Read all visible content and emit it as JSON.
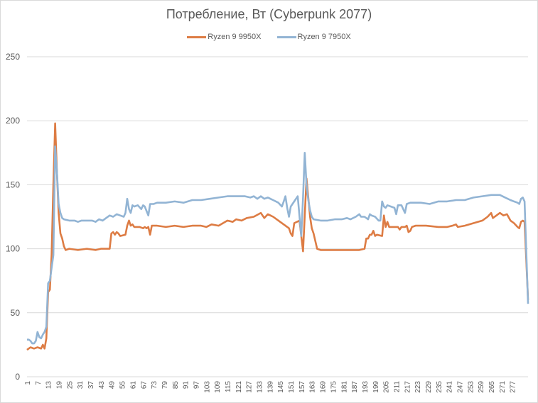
{
  "chart_data": {
    "type": "line",
    "title": "Потребление, Вт (Cyberpunk 2077)",
    "xlabel": "",
    "ylabel": "",
    "ylim": [
      0,
      250
    ],
    "yticks": [
      0,
      50,
      100,
      150,
      200,
      250
    ],
    "grid": "horizontal",
    "legend_position": "top",
    "x_range": [
      1,
      279
    ],
    "x_tick_labels": [
      "1",
      "7",
      "13",
      "19",
      "25",
      "31",
      "37",
      "43",
      "49",
      "55",
      "61",
      "67",
      "73",
      "79",
      "85",
      "91",
      "97",
      "103",
      "109",
      "115",
      "121",
      "127",
      "133",
      "139",
      "145",
      "151",
      "157",
      "163",
      "169",
      "175",
      "181",
      "187",
      "193",
      "199",
      "205",
      "211",
      "217",
      "223",
      "229",
      "235",
      "241",
      "247",
      "253",
      "259",
      "265",
      "271",
      "277"
    ],
    "series": [
      {
        "name": "Ryzen 9 9950X",
        "color": "#dd7c44",
        "keypoints": [
          [
            1,
            21
          ],
          [
            3,
            23
          ],
          [
            5,
            22
          ],
          [
            7,
            23
          ],
          [
            9,
            22
          ],
          [
            10,
            25
          ],
          [
            11,
            22
          ],
          [
            12,
            30
          ],
          [
            13,
            66
          ],
          [
            14,
            68
          ],
          [
            15,
            95
          ],
          [
            16,
            150
          ],
          [
            17,
            198
          ],
          [
            18,
            160
          ],
          [
            19,
            128
          ],
          [
            20,
            112
          ],
          [
            21,
            108
          ],
          [
            22,
            102
          ],
          [
            23,
            99
          ],
          [
            25,
            100
          ],
          [
            30,
            99
          ],
          [
            35,
            100
          ],
          [
            40,
            99
          ],
          [
            43,
            100
          ],
          [
            48,
            100
          ],
          [
            49,
            112
          ],
          [
            50,
            113
          ],
          [
            51,
            111
          ],
          [
            52,
            113
          ],
          [
            53,
            112
          ],
          [
            54,
            110
          ],
          [
            57,
            111
          ],
          [
            58,
            118
          ],
          [
            59,
            122
          ],
          [
            60,
            118
          ],
          [
            61,
            119
          ],
          [
            62,
            117
          ],
          [
            65,
            117
          ],
          [
            67,
            116
          ],
          [
            68,
            117
          ],
          [
            69,
            116
          ],
          [
            70,
            117
          ],
          [
            71,
            111
          ],
          [
            72,
            118
          ],
          [
            75,
            118
          ],
          [
            80,
            117
          ],
          [
            85,
            118
          ],
          [
            90,
            117
          ],
          [
            95,
            118
          ],
          [
            100,
            118
          ],
          [
            103,
            117
          ],
          [
            106,
            119
          ],
          [
            110,
            118
          ],
          [
            115,
            122
          ],
          [
            118,
            121
          ],
          [
            120,
            123
          ],
          [
            123,
            122
          ],
          [
            126,
            124
          ],
          [
            130,
            125
          ],
          [
            134,
            128
          ],
          [
            136,
            124
          ],
          [
            138,
            127
          ],
          [
            141,
            125
          ],
          [
            145,
            121
          ],
          [
            148,
            118
          ],
          [
            150,
            116
          ],
          [
            151,
            112
          ],
          [
            152,
            110
          ],
          [
            153,
            120
          ],
          [
            156,
            122
          ],
          [
            158,
            98
          ],
          [
            160,
            155
          ],
          [
            162,
            125
          ],
          [
            163,
            116
          ],
          [
            164,
            112
          ],
          [
            166,
            100
          ],
          [
            168,
            99
          ],
          [
            175,
            99
          ],
          [
            180,
            99
          ],
          [
            185,
            99
          ],
          [
            190,
            99
          ],
          [
            193,
            100
          ],
          [
            194,
            108
          ],
          [
            195,
            108
          ],
          [
            196,
            111
          ],
          [
            197,
            111
          ],
          [
            198,
            114
          ],
          [
            199,
            110
          ],
          [
            200,
            111
          ],
          [
            203,
            110
          ],
          [
            204,
            126
          ],
          [
            205,
            117
          ],
          [
            206,
            121
          ],
          [
            207,
            117
          ],
          [
            210,
            117
          ],
          [
            212,
            117
          ],
          [
            213,
            115
          ],
          [
            214,
            117
          ],
          [
            216,
            117
          ],
          [
            217,
            118
          ],
          [
            218,
            113
          ],
          [
            219,
            114
          ],
          [
            220,
            117
          ],
          [
            222,
            118
          ],
          [
            228,
            118
          ],
          [
            235,
            117
          ],
          [
            240,
            117
          ],
          [
            243,
            118
          ],
          [
            245,
            119
          ],
          [
            246,
            117
          ],
          [
            250,
            118
          ],
          [
            255,
            120
          ],
          [
            260,
            122
          ],
          [
            263,
            125
          ],
          [
            265,
            128
          ],
          [
            266,
            124
          ],
          [
            268,
            126
          ],
          [
            270,
            128
          ],
          [
            272,
            126
          ],
          [
            274,
            127
          ],
          [
            276,
            122
          ],
          [
            278,
            120
          ],
          [
            280,
            117
          ],
          [
            281,
            116
          ],
          [
            282,
            121
          ],
          [
            283,
            122
          ],
          [
            284,
            121
          ],
          [
            286,
            60
          ]
        ]
      },
      {
        "name": "Ryzen 9 7950X",
        "color": "#92b4d4",
        "keypoints": [
          [
            1,
            29
          ],
          [
            2,
            29
          ],
          [
            3,
            28
          ],
          [
            4,
            26
          ],
          [
            5,
            26
          ],
          [
            6,
            28
          ],
          [
            7,
            35
          ],
          [
            8,
            31
          ],
          [
            9,
            30
          ],
          [
            10,
            33
          ],
          [
            11,
            35
          ],
          [
            12,
            39
          ],
          [
            13,
            73
          ],
          [
            14,
            75
          ],
          [
            15,
            85
          ],
          [
            16,
            95
          ],
          [
            17,
            180
          ],
          [
            18,
            160
          ],
          [
            19,
            135
          ],
          [
            20,
            128
          ],
          [
            21,
            124
          ],
          [
            22,
            123
          ],
          [
            25,
            122
          ],
          [
            28,
            122
          ],
          [
            30,
            121
          ],
          [
            32,
            122
          ],
          [
            35,
            122
          ],
          [
            38,
            122
          ],
          [
            40,
            121
          ],
          [
            42,
            123
          ],
          [
            44,
            122
          ],
          [
            46,
            124
          ],
          [
            48,
            126
          ],
          [
            50,
            125
          ],
          [
            52,
            127
          ],
          [
            54,
            126
          ],
          [
            56,
            125
          ],
          [
            57,
            128
          ],
          [
            58,
            139
          ],
          [
            59,
            131
          ],
          [
            60,
            128
          ],
          [
            61,
            134
          ],
          [
            62,
            133
          ],
          [
            64,
            134
          ],
          [
            66,
            131
          ],
          [
            67,
            134
          ],
          [
            68,
            133
          ],
          [
            70,
            126
          ],
          [
            71,
            135
          ],
          [
            73,
            135
          ],
          [
            75,
            136
          ],
          [
            80,
            136
          ],
          [
            85,
            137
          ],
          [
            90,
            136
          ],
          [
            95,
            138
          ],
          [
            100,
            138
          ],
          [
            105,
            139
          ],
          [
            110,
            140
          ],
          [
            115,
            141
          ],
          [
            120,
            141
          ],
          [
            125,
            141
          ],
          [
            128,
            140
          ],
          [
            130,
            141
          ],
          [
            132,
            139
          ],
          [
            134,
            141
          ],
          [
            136,
            139
          ],
          [
            138,
            140
          ],
          [
            141,
            138
          ],
          [
            144,
            136
          ],
          [
            146,
            133
          ],
          [
            147,
            137
          ],
          [
            148,
            141
          ],
          [
            149,
            132
          ],
          [
            150,
            125
          ],
          [
            151,
            133
          ],
          [
            153,
            137
          ],
          [
            155,
            141
          ],
          [
            157,
            110
          ],
          [
            158,
            140
          ],
          [
            159,
            175
          ],
          [
            160,
            150
          ],
          [
            161,
            138
          ],
          [
            162,
            130
          ],
          [
            163,
            125
          ],
          [
            164,
            123
          ],
          [
            168,
            122
          ],
          [
            172,
            122
          ],
          [
            176,
            123
          ],
          [
            180,
            123
          ],
          [
            183,
            124
          ],
          [
            185,
            123
          ],
          [
            188,
            125
          ],
          [
            190,
            127
          ],
          [
            191,
            125
          ],
          [
            193,
            125
          ],
          [
            195,
            123
          ],
          [
            196,
            127
          ],
          [
            197,
            126
          ],
          [
            199,
            125
          ],
          [
            201,
            122
          ],
          [
            202,
            122
          ],
          [
            203,
            137
          ],
          [
            204,
            133
          ],
          [
            205,
            132
          ],
          [
            206,
            134
          ],
          [
            208,
            133
          ],
          [
            210,
            132
          ],
          [
            211,
            127
          ],
          [
            212,
            134
          ],
          [
            214,
            134
          ],
          [
            216,
            128
          ],
          [
            217,
            135
          ],
          [
            219,
            136
          ],
          [
            225,
            136
          ],
          [
            230,
            135
          ],
          [
            235,
            137
          ],
          [
            240,
            137
          ],
          [
            245,
            138
          ],
          [
            250,
            138
          ],
          [
            255,
            140
          ],
          [
            260,
            141
          ],
          [
            265,
            142
          ],
          [
            270,
            142
          ],
          [
            273,
            140
          ],
          [
            276,
            138
          ],
          [
            278,
            137
          ],
          [
            280,
            136
          ],
          [
            281,
            135
          ],
          [
            282,
            139
          ],
          [
            283,
            140
          ],
          [
            284,
            137
          ],
          [
            286,
            57
          ]
        ]
      }
    ]
  },
  "title": "Потребление, Вт (Cyberpunk 2077)",
  "legend": {
    "items": [
      {
        "label": "Ryzen 9 9950X",
        "color": "#dd7c44"
      },
      {
        "label": "Ryzen 9 7950X",
        "color": "#92b4d4"
      }
    ]
  },
  "y_axis": {
    "labels": [
      "0",
      "50",
      "100",
      "150",
      "200",
      "250"
    ]
  }
}
